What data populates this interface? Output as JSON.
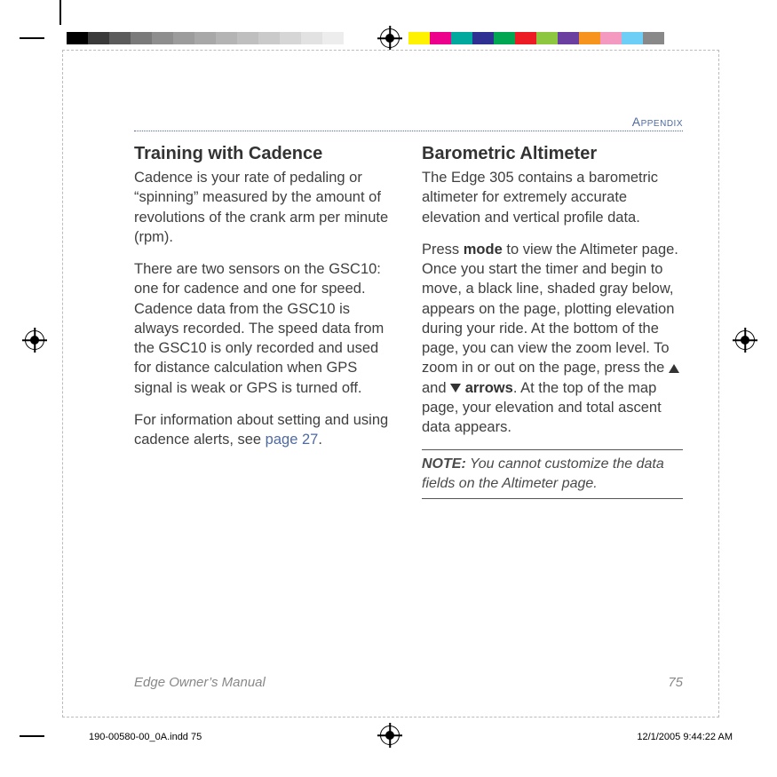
{
  "printer_marks": {
    "left_swatches": [
      "#000000",
      "#3a3a3a",
      "#5b5b5b",
      "#7a7a7a",
      "#8e8e8e",
      "#9c9c9c",
      "#a8a8a8",
      "#b4b4b4",
      "#bfbfbf",
      "#cacaca",
      "#d6d6d6",
      "#e2e2e2",
      "#ededed",
      "#ffffff"
    ],
    "right_swatches": [
      "#fff200",
      "#ec008c",
      "#00a99d",
      "#2e3192",
      "#00a651",
      "#ed1c24",
      "#8dc63f",
      "#6b3fa0",
      "#f7941d",
      "#f49ac1",
      "#6dcff6",
      "#898989"
    ]
  },
  "header": {
    "section": "Appendix"
  },
  "left_column": {
    "title": "Training with Cadence",
    "p1": "Cadence is your rate of pedaling or “spinning” measured by the amount of revolutions of the crank arm per minute (rpm).",
    "p2": "There are two sensors on the GSC10: one for cadence and one for speed. Cadence data from the GSC10 is always recorded. The speed data from the GSC10 is only recorded and used for distance calculation when GPS signal is weak or GPS is turned off.",
    "p3_pre": "For information about setting and using cadence alerts, see ",
    "p3_link": "page 27",
    "p3_post": "."
  },
  "right_column": {
    "title": "Barometric Altimeter",
    "p1": "The Edge 305 contains a barometric altimeter for extremely accurate elevation and vertical profile data.",
    "p2_a": "Press ",
    "p2_mode": "mode",
    "p2_b": " to view the Altimeter page. Once you start the timer and begin to move, a black line, shaded gray below, appears on the page, plotting elevation during your ride. At the bottom of the page, you can view the zoom level. To zoom in or out on the page, press the ",
    "p2_and": " and ",
    "p2_arrows": " arrows",
    "p2_c": ". At the top of the map page, your elevation and total ascent data appears.",
    "note_label": "NOTE:",
    "note_text": " You cannot customize the data fields on the Altimeter page."
  },
  "footer": {
    "doc": "Edge Owner’s Manual",
    "page": "75"
  },
  "slug": {
    "file": "190-00580-00_0A.indd   75",
    "timestamp": "12/1/2005   9:44:22 AM"
  }
}
